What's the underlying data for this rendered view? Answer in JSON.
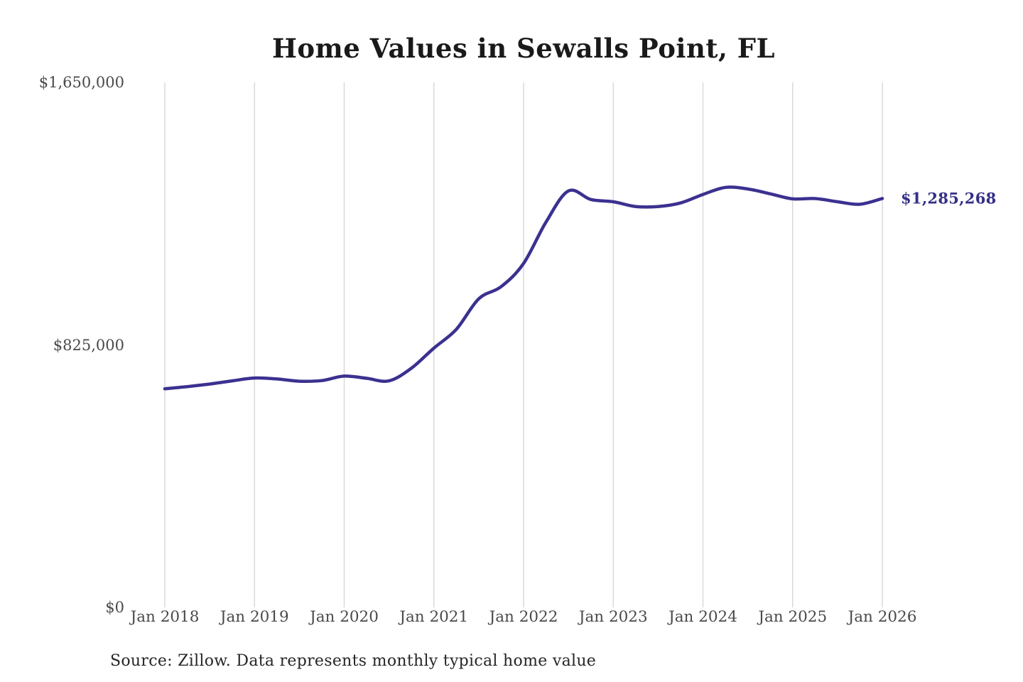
{
  "title": "Home Values in Sewalls Point, FL",
  "source_note": "Source: Zillow. Data represents monthly typical home value",
  "latest_value_label": "$1,285,268",
  "colors": {
    "background": "#ffffff",
    "line": "#3b3190",
    "latest_label": "#343086",
    "grid": "#d7d7d7",
    "axis_label": "#4a4a4a",
    "title": "#1a1a1a",
    "source": "#262626"
  },
  "chart_data": {
    "type": "line",
    "title": "Home Values in Sewalls Point, FL",
    "xlabel": "",
    "ylabel": "",
    "ylim": [
      0,
      1650000
    ],
    "x_range": [
      "Jan 2018",
      "Jan 2026"
    ],
    "grid": "vertical-only",
    "legend": "none",
    "series_name": "Typical home value",
    "y_ticks": [
      {
        "label": "$1,650,000",
        "value": 1650000
      },
      {
        "label": "$825,000",
        "value": 825000
      },
      {
        "label": "$0",
        "value": 0
      }
    ],
    "x_ticks": [
      {
        "label": "Jan 2018",
        "year": 2018
      },
      {
        "label": "Jan 2019",
        "year": 2019
      },
      {
        "label": "Jan 2020",
        "year": 2020
      },
      {
        "label": "Jan 2021",
        "year": 2021
      },
      {
        "label": "Jan 2022",
        "year": 2022
      },
      {
        "label": "Jan 2023",
        "year": 2023
      },
      {
        "label": "Jan 2024",
        "year": 2024
      },
      {
        "label": "Jan 2025",
        "year": 2025
      },
      {
        "label": "Jan 2026",
        "year": 2026
      }
    ],
    "points": [
      {
        "date": "2018-01",
        "value": 687000
      },
      {
        "date": "2018-04",
        "value": 694000
      },
      {
        "date": "2018-07",
        "value": 702000
      },
      {
        "date": "2018-10",
        "value": 712000
      },
      {
        "date": "2019-01",
        "value": 721000
      },
      {
        "date": "2019-04",
        "value": 718000
      },
      {
        "date": "2019-07",
        "value": 711000
      },
      {
        "date": "2019-10",
        "value": 713000
      },
      {
        "date": "2020-01",
        "value": 727000
      },
      {
        "date": "2020-04",
        "value": 720000
      },
      {
        "date": "2020-07",
        "value": 712000
      },
      {
        "date": "2020-10",
        "value": 752000
      },
      {
        "date": "2021-01",
        "value": 815000
      },
      {
        "date": "2021-04",
        "value": 874000
      },
      {
        "date": "2021-07",
        "value": 970000
      },
      {
        "date": "2021-10",
        "value": 1008000
      },
      {
        "date": "2022-01",
        "value": 1081000
      },
      {
        "date": "2022-04",
        "value": 1211000
      },
      {
        "date": "2022-07",
        "value": 1309000
      },
      {
        "date": "2022-10",
        "value": 1282000
      },
      {
        "date": "2023-01",
        "value": 1275000
      },
      {
        "date": "2023-04",
        "value": 1260000
      },
      {
        "date": "2023-07",
        "value": 1260000
      },
      {
        "date": "2023-10",
        "value": 1271000
      },
      {
        "date": "2024-01",
        "value": 1298000
      },
      {
        "date": "2024-04",
        "value": 1320000
      },
      {
        "date": "2024-07",
        "value": 1315000
      },
      {
        "date": "2024-10",
        "value": 1300000
      },
      {
        "date": "2025-01",
        "value": 1284000
      },
      {
        "date": "2025-04",
        "value": 1285000
      },
      {
        "date": "2025-07",
        "value": 1275000
      },
      {
        "date": "2025-10",
        "value": 1267000
      },
      {
        "date": "2026-01",
        "value": 1285268
      }
    ],
    "latest_value": 1285268
  }
}
